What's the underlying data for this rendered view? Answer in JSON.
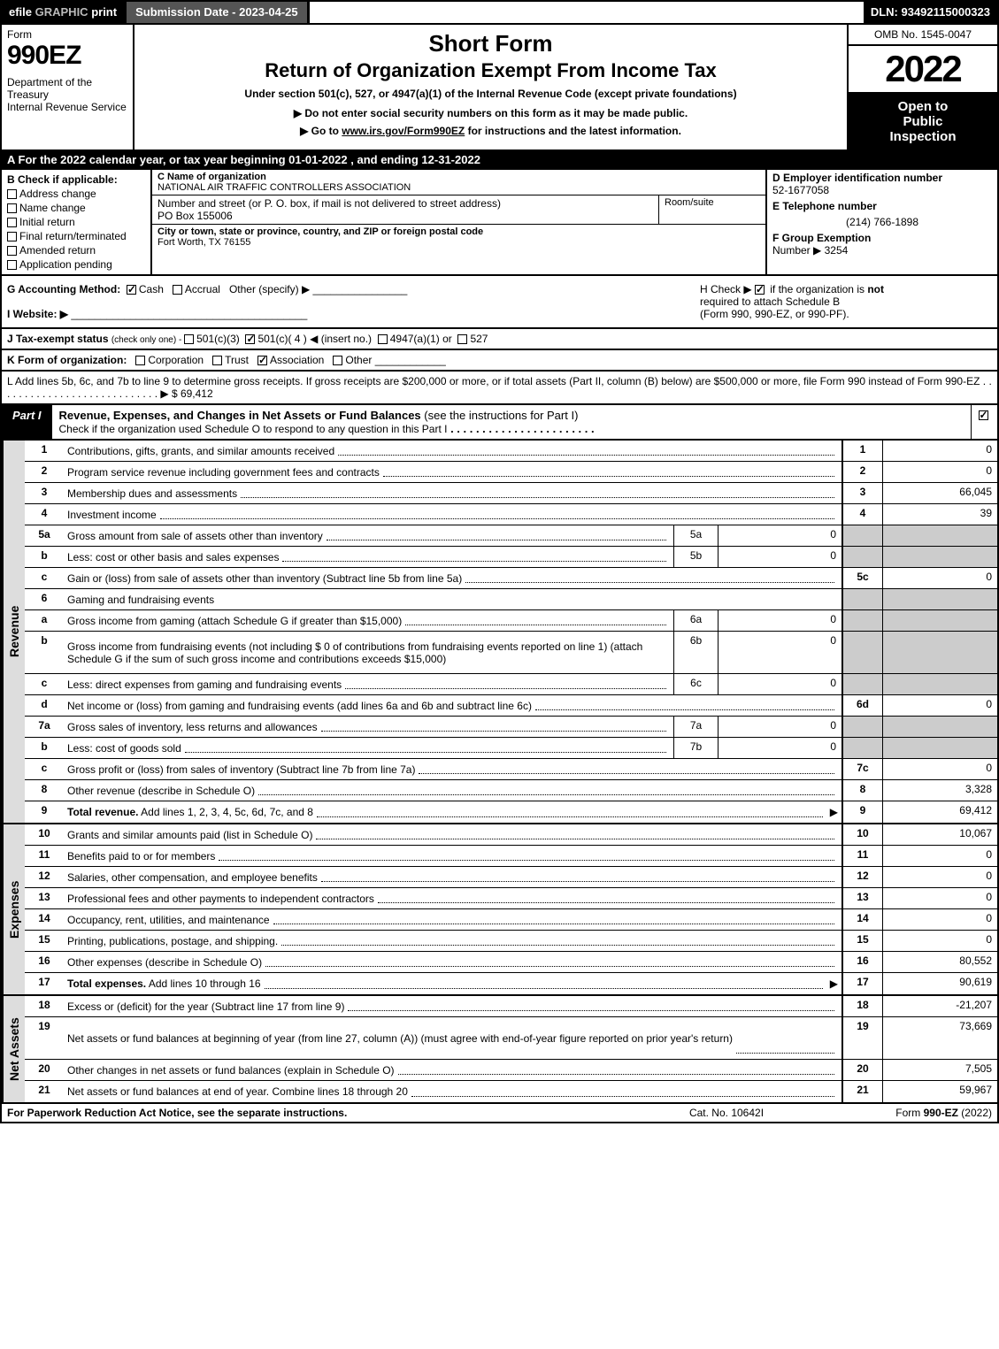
{
  "topbar": {
    "efile_prefix": "efile ",
    "efile_graphic": "GRAPHIC ",
    "efile_print": "print",
    "submission_label": "Submission Date - ",
    "submission_date": "2023-04-25",
    "dln_label": "DLN: ",
    "dln": "93492115000323"
  },
  "header": {
    "form_label": "Form",
    "form_number": "990EZ",
    "dept1": "Department of the Treasury",
    "dept2": "Internal Revenue Service",
    "title1": "Short Form",
    "title2": "Return of Organization Exempt From Income Tax",
    "subtitle": "Under section 501(c), 527, or 4947(a)(1) of the Internal Revenue Code (except private foundations)",
    "note1": "▶ Do not enter social security numbers on this form as it may be made public.",
    "note2_pre": "▶ Go to ",
    "note2_link": "www.irs.gov/Form990EZ",
    "note2_post": " for instructions and the latest information.",
    "omb": "OMB No. 1545-0047",
    "year": "2022",
    "insp1": "Open to",
    "insp2": "Public",
    "insp3": "Inspection"
  },
  "rowA": {
    "text_pre": "A  For the 2022 calendar year, or tax year beginning ",
    "begin": "01-01-2022",
    "mid": " , and ending ",
    "end": "12-31-2022"
  },
  "colB": {
    "label": "B  Check if applicable:",
    "items": [
      "Address change",
      "Name change",
      "Initial return",
      "Final return/terminated",
      "Amended return",
      "Application pending"
    ]
  },
  "colC": {
    "name_h": "C Name of organization",
    "name_v": "NATIONAL AIR TRAFFIC CONTROLLERS ASSOCIATION",
    "street_h": "Number and street (or P. O. box, if mail is not delivered to street address)",
    "street_v": "PO Box 155006",
    "room_h": "Room/suite",
    "city_h": "City or town, state or province, country, and ZIP or foreign postal code",
    "city_v": "Fort Worth, TX  76155"
  },
  "colD": {
    "ein_h": "D Employer identification number",
    "ein_v": "52-1677058",
    "tel_h": "E Telephone number",
    "tel_v": "(214) 766-1898",
    "grp_h": "F Group Exemption",
    "grp_h2": "Number  ▶",
    "grp_v": "3254"
  },
  "rowG": {
    "label": "G Accounting Method:",
    "cash": "Cash",
    "accrual": "Accrual",
    "other": "Other (specify) ▶"
  },
  "rowH": {
    "pre": "H  Check ▶ ",
    "post1": " if the organization is ",
    "not": "not",
    "post2": " required to attach Schedule B",
    "post3": "(Form 990, 990-EZ, or 990-PF)."
  },
  "rowI": {
    "label": "I Website: ▶"
  },
  "rowJ": {
    "label": "J Tax-exempt status ",
    "small": "(check only one) - ",
    "opt1": "501(c)(3)",
    "opt2": "501(c)( 4 ) ◀ (insert no.)",
    "opt3": "4947(a)(1) or",
    "opt4": "527"
  },
  "rowK": {
    "label": "K Form of organization:",
    "opts": [
      "Corporation",
      "Trust",
      "Association",
      "Other"
    ],
    "checked_idx": 2
  },
  "rowL": {
    "text": "L Add lines 5b, 6c, and 7b to line 9 to determine gross receipts. If gross receipts are $200,000 or more, or if total assets (Part II, column (B) below) are $500,000 or more, file Form 990 instead of Form 990-EZ",
    "amount": "$ 69,412"
  },
  "part1": {
    "label": "Part I",
    "title": "Revenue, Expenses, and Changes in Net Assets or Fund Balances ",
    "title_sub": "(see the instructions for Part I)",
    "check_line": "Check if the organization used Schedule O to respond to any question in this Part I"
  },
  "revenue": [
    {
      "n": "1",
      "d": "Contributions, gifts, grants, and similar amounts received",
      "rn": "1",
      "a": "0"
    },
    {
      "n": "2",
      "d": "Program service revenue including government fees and contracts",
      "rn": "2",
      "a": "0"
    },
    {
      "n": "3",
      "d": "Membership dues and assessments",
      "rn": "3",
      "a": "66,045"
    },
    {
      "n": "4",
      "d": "Investment income",
      "rn": "4",
      "a": "39"
    },
    {
      "n": "5a",
      "d": "Gross amount from sale of assets other than inventory",
      "sn": "5a",
      "sv": "0"
    },
    {
      "n": "b",
      "d": "Less: cost or other basis and sales expenses",
      "sn": "5b",
      "sv": "0"
    },
    {
      "n": "c",
      "d": "Gain or (loss) from sale of assets other than inventory (Subtract line 5b from line 5a)",
      "rn": "5c",
      "a": "0"
    },
    {
      "n": "6",
      "d": "Gaming and fundraising events",
      "header": true
    },
    {
      "n": "a",
      "d": "Gross income from gaming (attach Schedule G if greater than $15,000)",
      "sn": "6a",
      "sv": "0"
    },
    {
      "n": "b",
      "d": "Gross income from fundraising events (not including $  0            of contributions from fundraising events reported on line 1) (attach Schedule G if the sum of such gross income and contributions exceeds $15,000)",
      "sn": "6b",
      "sv": "0",
      "tall": true
    },
    {
      "n": "c",
      "d": "Less: direct expenses from gaming and fundraising events",
      "sn": "6c",
      "sv": "0"
    },
    {
      "n": "d",
      "d": "Net income or (loss) from gaming and fundraising events (add lines 6a and 6b and subtract line 6c)",
      "rn": "6d",
      "a": "0"
    },
    {
      "n": "7a",
      "d": "Gross sales of inventory, less returns and allowances",
      "sn": "7a",
      "sv": "0"
    },
    {
      "n": "b",
      "d": "Less: cost of goods sold",
      "sn": "7b",
      "sv": "0"
    },
    {
      "n": "c",
      "d": "Gross profit or (loss) from sales of inventory (Subtract line 7b from line 7a)",
      "rn": "7c",
      "a": "0"
    },
    {
      "n": "8",
      "d": "Other revenue (describe in Schedule O)",
      "rn": "8",
      "a": "3,328"
    },
    {
      "n": "9",
      "d": "Total revenue. Add lines 1, 2, 3, 4, 5c, 6d, 7c, and 8",
      "rn": "9",
      "a": "69,412",
      "bold": true,
      "arrow": true
    }
  ],
  "side_rev": "Revenue",
  "expenses": [
    {
      "n": "10",
      "d": "Grants and similar amounts paid (list in Schedule O)",
      "rn": "10",
      "a": "10,067"
    },
    {
      "n": "11",
      "d": "Benefits paid to or for members",
      "rn": "11",
      "a": "0"
    },
    {
      "n": "12",
      "d": "Salaries, other compensation, and employee benefits",
      "rn": "12",
      "a": "0"
    },
    {
      "n": "13",
      "d": "Professional fees and other payments to independent contractors",
      "rn": "13",
      "a": "0"
    },
    {
      "n": "14",
      "d": "Occupancy, rent, utilities, and maintenance",
      "rn": "14",
      "a": "0"
    },
    {
      "n": "15",
      "d": "Printing, publications, postage, and shipping.",
      "rn": "15",
      "a": "0"
    },
    {
      "n": "16",
      "d": "Other expenses (describe in Schedule O)",
      "rn": "16",
      "a": "80,552"
    },
    {
      "n": "17",
      "d": "Total expenses. Add lines 10 through 16",
      "rn": "17",
      "a": "90,619",
      "bold": true,
      "arrow": true
    }
  ],
  "side_exp": "Expenses",
  "netassets": [
    {
      "n": "18",
      "d": "Excess or (deficit) for the year (Subtract line 17 from line 9)",
      "rn": "18",
      "a": "-21,207"
    },
    {
      "n": "19",
      "d": "Net assets or fund balances at beginning of year (from line 27, column (A)) (must agree with end-of-year figure reported on prior year's return)",
      "rn": "19",
      "a": "73,669",
      "tall": true
    },
    {
      "n": "20",
      "d": "Other changes in net assets or fund balances (explain in Schedule O)",
      "rn": "20",
      "a": "7,505"
    },
    {
      "n": "21",
      "d": "Net assets or fund balances at end of year. Combine lines 18 through 20",
      "rn": "21",
      "a": "59,967"
    }
  ],
  "side_net": "Net Assets",
  "footer": {
    "left": "For Paperwork Reduction Act Notice, see the separate instructions.",
    "mid": "Cat. No. 10642I",
    "right_pre": "Form ",
    "right_bold": "990-EZ",
    "right_post": " (2022)"
  },
  "colors": {
    "black": "#000000",
    "grey_bg": "#cccccc",
    "side_bg": "#dddddd",
    "darkbar": "#555555"
  }
}
